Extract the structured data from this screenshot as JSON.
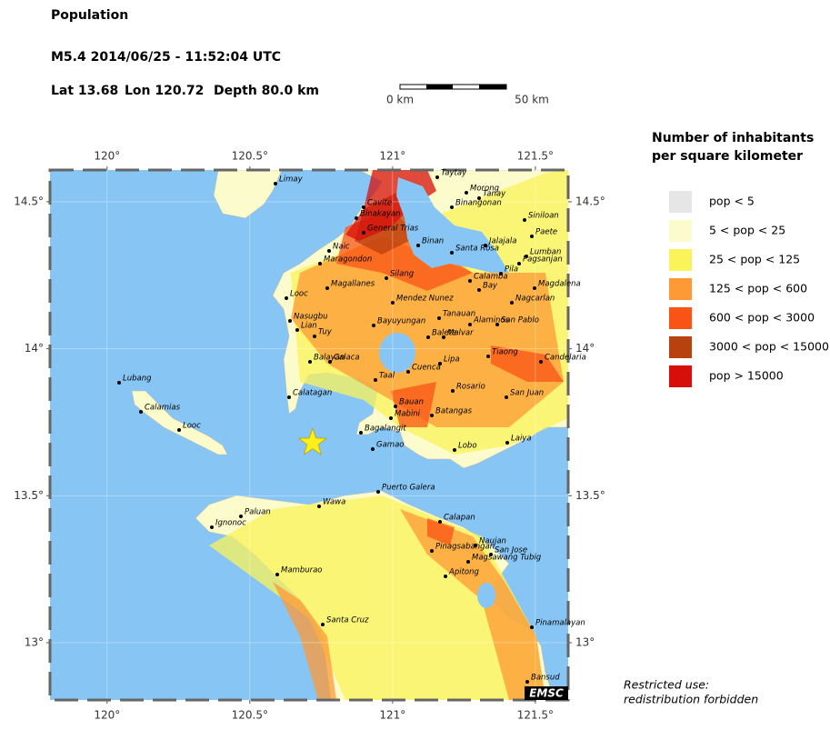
{
  "header": {
    "title": "Population",
    "event": "M5.4  2014/06/25 - 11:52:04 UTC",
    "lat": {
      "value": 13.68,
      "label": "Lat 13.68"
    },
    "lon": {
      "value": 120.72,
      "label": "Lon 120.72"
    },
    "depth": "Depth  80.0 km"
  },
  "scale": {
    "start": "0 km",
    "end": "50 km"
  },
  "map": {
    "xlim": [
      119.8,
      121.615
    ],
    "ylim": [
      12.805,
      14.608
    ],
    "xticks": [
      {
        "value": 120,
        "label": "120°"
      },
      {
        "value": 120.5,
        "label": "120.5°"
      },
      {
        "value": 121,
        "label": "121°"
      },
      {
        "value": 121.5,
        "label": "121.5°"
      }
    ],
    "yticks": [
      {
        "value": 13,
        "label": "13°"
      },
      {
        "value": 13.5,
        "label": "13.5°"
      },
      {
        "value": 14,
        "label": "14°"
      },
      {
        "value": 14.5,
        "label": "14.5°"
      }
    ],
    "cities": [
      "Limay",
      "Cavite",
      "Binakayan",
      "General Trias",
      "Naic",
      "Maragondon",
      "Binan",
      "Santa Rosa",
      "Taytay",
      "Morong",
      "Tanay",
      "Binangonan",
      "Siniloan",
      "Paete",
      "Jalajala",
      "Lumban",
      "Pagsanjan",
      "Pila",
      "Calamba",
      "Silang",
      "Bay",
      "Magdalena",
      "Magallanes",
      "Looc",
      "Mendez Nunez",
      "Nagcarlan",
      "Nasugbu",
      "Lian",
      "Tanauan",
      "Alaminos",
      "San Pablo",
      "Tuy",
      "Bayuyungan",
      "Balete",
      "Malvar",
      "Balayan",
      "Calaca",
      "Tiaong",
      "Candelaria",
      "Lipa",
      "Calatagan",
      "Taal",
      "Cuenca",
      "Rosario",
      "San Juan",
      "Bauan",
      "Batangas",
      "Mabini",
      "Bagalangit",
      "Lobo",
      "Laiya",
      "Gamao",
      "Lubang",
      "Calamias",
      "Looc",
      "Puerto Galera",
      "Wawa",
      "Paluan",
      "Ignonoc",
      "Calapan",
      "Naujan",
      "Pinagsabangan",
      "San Jose",
      "Magsawang Tubig",
      "Mamburao",
      "Apitong",
      "Santa Cruz",
      "Pinamalayan",
      "Bansud"
    ],
    "credit": "EMSC"
  },
  "legend": {
    "title": [
      "Number of inhabitants",
      "per square kilometer"
    ],
    "items": [
      {
        "label": "pop < 5",
        "color": "#e6e6e6"
      },
      {
        "label": "5 < pop < 25",
        "color": "#fbfbcb"
      },
      {
        "label": "25 < pop < 125",
        "color": "#fbf35a"
      },
      {
        "label": "125 < pop < 600",
        "color": "#fd9a35"
      },
      {
        "label": "600 < pop < 3000",
        "color": "#fa5316"
      },
      {
        "label": "3000 < pop < 15000",
        "color": "#b8420f"
      },
      {
        "label": "pop > 15000",
        "color": "#d70f0b"
      }
    ]
  },
  "notice": [
    "Restricted use:",
    "redistribution forbidden"
  ]
}
